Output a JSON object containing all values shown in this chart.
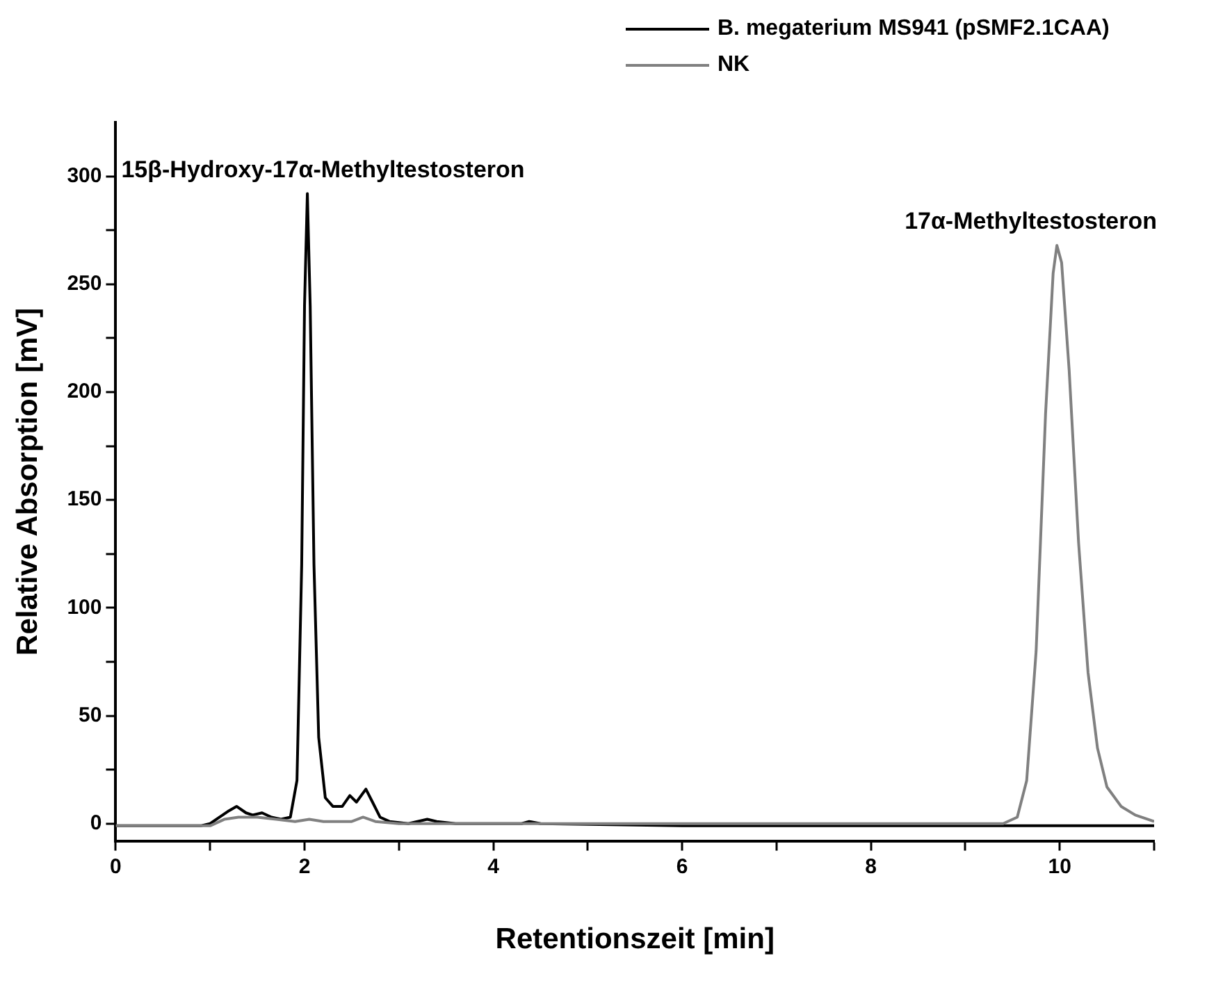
{
  "chart_data": {
    "type": "line",
    "xlabel": "Retentionszeit [min]",
    "ylabel": "Relative Absorption [mV]",
    "xlim": [
      0,
      11
    ],
    "xticks": [
      0,
      {
        "value": 1,
        "label": null
      },
      2,
      {
        "value": 3,
        "label": null
      },
      4,
      {
        "value": 5,
        "label": null
      },
      6,
      {
        "value": 7,
        "label": null
      },
      8,
      {
        "value": 9,
        "label": null
      },
      10,
      {
        "value": 11,
        "label": null
      }
    ],
    "ylim": [
      -8,
      325
    ],
    "yticks": [
      0,
      {
        "value": 25,
        "label": null
      },
      50,
      {
        "value": 75,
        "label": null
      },
      100,
      {
        "value": 125,
        "label": null
      },
      150,
      {
        "value": 175,
        "label": null
      },
      200,
      {
        "value": 225,
        "label": null
      },
      250,
      {
        "value": 275,
        "label": null
      },
      300
    ],
    "grid": false,
    "legend": "top right",
    "marker": "none",
    "line_style": "solid",
    "series": [
      {
        "name": "B. megaterium MS941 (pSMF2.1CAA)",
        "color": "#000000",
        "x": [
          0,
          0.5,
          0.9,
          1.0,
          1.1,
          1.2,
          1.28,
          1.38,
          1.45,
          1.55,
          1.65,
          1.75,
          1.85,
          1.92,
          1.97,
          2.0,
          2.03,
          2.06,
          2.1,
          2.15,
          2.22,
          2.3,
          2.4,
          2.48,
          2.55,
          2.65,
          2.72,
          2.8,
          2.9,
          3.1,
          3.3,
          3.4,
          3.6,
          4.3,
          4.38,
          4.5,
          6,
          8,
          10,
          11
        ],
        "values": [
          -1,
          -1,
          -1,
          0,
          3,
          6,
          8,
          5,
          4,
          5,
          3,
          2,
          3,
          20,
          120,
          240,
          292,
          240,
          120,
          40,
          12,
          8,
          8,
          13,
          10,
          16,
          10,
          3,
          1,
          0,
          2,
          1,
          0,
          0,
          1,
          0,
          -1,
          -1,
          -1,
          -1
        ]
      },
      {
        "name": "NK",
        "color": "#808080",
        "x": [
          0,
          1.0,
          1.15,
          1.3,
          1.5,
          1.7,
          1.9,
          2.05,
          2.2,
          2.5,
          2.62,
          2.75,
          3,
          9.4,
          9.55,
          9.65,
          9.75,
          9.85,
          9.93,
          9.97,
          10.02,
          10.1,
          10.2,
          10.3,
          10.4,
          10.5,
          10.65,
          10.8,
          11
        ],
        "values": [
          -1,
          -1,
          2,
          3,
          3,
          2,
          1,
          2,
          1,
          1,
          3,
          1,
          0,
          0,
          3,
          20,
          80,
          190,
          255,
          268,
          260,
          210,
          130,
          70,
          35,
          17,
          8,
          4,
          1
        ]
      }
    ],
    "annotations": [
      {
        "text": "15β-Hydroxy-17α-Methyltestosteron",
        "x": 2.03,
        "y": 292
      },
      {
        "text": "17α-Methyltestosteron",
        "x": 9.97,
        "y": 268
      }
    ]
  }
}
